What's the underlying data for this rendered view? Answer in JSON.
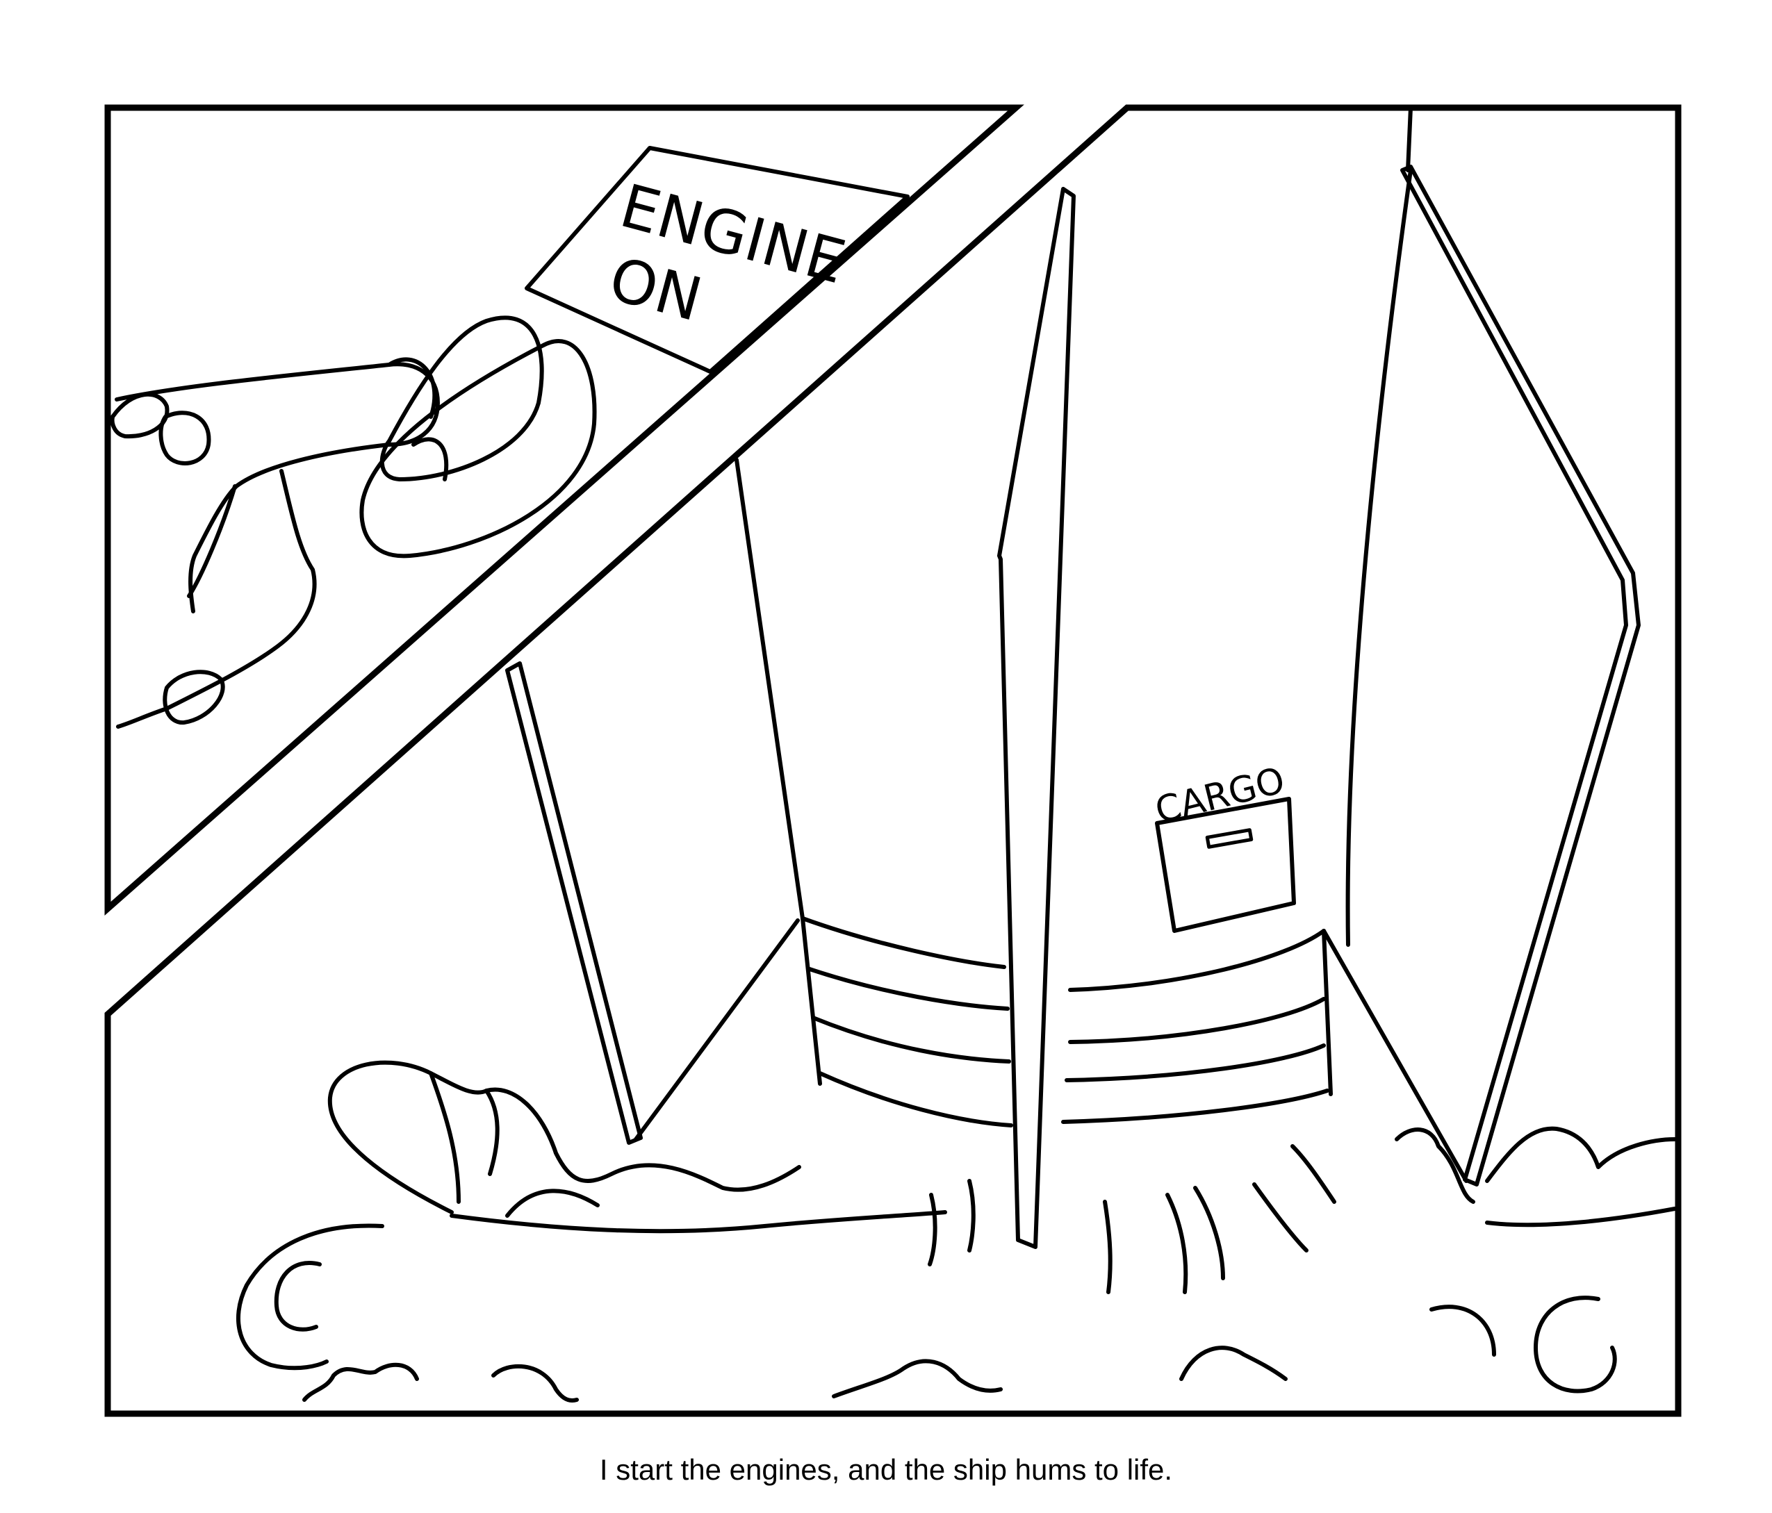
{
  "panel_top": {
    "sign_line1": "ENGINE",
    "sign_line2": "ON"
  },
  "panel_bottom": {
    "hatch_label": "CARGO"
  },
  "caption": "I start the engines, and the ship hums to life.",
  "colors": {
    "ink": "#000000",
    "paper": "#ffffff"
  }
}
